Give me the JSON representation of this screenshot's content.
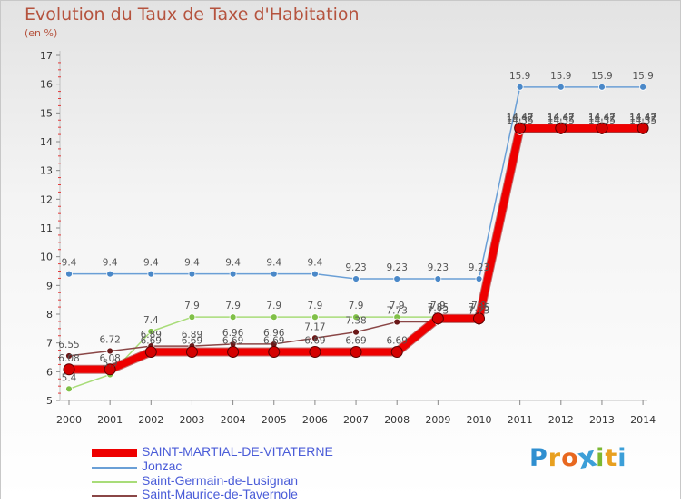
{
  "title": "Evolution du Taux de Taxe d'Habitation",
  "subtitle": "(en %)",
  "logo": {
    "letters": [
      "P",
      "r",
      "o",
      "x",
      "i",
      "t",
      "i"
    ],
    "colors": [
      "#2f8fd0",
      "#e8a020",
      "#e86820",
      "#3c9fd8",
      "#7cb832",
      "#e8a020",
      "#3c9fd8"
    ]
  },
  "colors": {
    "title": "#b5533e",
    "legend_text": "#4a5cd8",
    "axis": "#c0c0c0",
    "tick_red": "#e23b3b"
  },
  "chart_data": {
    "type": "line",
    "title": "Evolution du Taux de Taxe d'Habitation",
    "ylabel": "(en %)",
    "xlabel": "",
    "x": [
      "2000",
      "2001",
      "2002",
      "2003",
      "2004",
      "2005",
      "2006",
      "2007",
      "2008",
      "2009",
      "2010",
      "2011",
      "2012",
      "2013",
      "2014"
    ],
    "yticks": [
      "5",
      "6",
      "7",
      "8",
      "9",
      "10",
      "11",
      "12",
      "13",
      "14",
      "15",
      "16",
      "17"
    ],
    "ylim": [
      5,
      17
    ],
    "grid": false,
    "legend_position": "bottom-left",
    "series": [
      {
        "name": "SAINT-MARTIAL-DE-VITATERNE",
        "color": "#ee0000",
        "line_color": "#ee0000",
        "marker_color": "#d40000",
        "width": 8,
        "marker_radius": 6,
        "label_color": "#555555",
        "values": [
          6.08,
          6.08,
          6.69,
          6.69,
          6.69,
          6.69,
          6.69,
          6.69,
          6.69,
          7.85,
          7.85,
          14.47,
          14.47,
          14.47,
          14.47
        ],
        "labels": [
          "6.08",
          "6.08",
          "6.69",
          "6.69",
          "6.69",
          "6.69",
          "6.69",
          "6.69",
          "6.69",
          "7.85",
          "7.85",
          "14.47",
          "14.47",
          "14.47",
          "14.47"
        ]
      },
      {
        "name": "Jonzac",
        "color": "#6a9fd6",
        "line_color": "#6a9fd6",
        "marker_color": "#4a88c8",
        "width": 1.5,
        "marker_radius": 3.5,
        "label_color": "#555555",
        "values": [
          9.4,
          9.4,
          9.4,
          9.4,
          9.4,
          9.4,
          9.4,
          9.23,
          9.23,
          9.23,
          9.23,
          15.9,
          15.9,
          15.9,
          15.9
        ],
        "labels": [
          "9.4",
          "9.4",
          "9.4",
          "9.4",
          "9.4",
          "9.4",
          "9.4",
          "9.23",
          "9.23",
          "9.23",
          "9.23",
          "15.9",
          "15.9",
          "15.9",
          "15.9"
        ]
      },
      {
        "name": "Saint-Germain-de-Lusignan",
        "color": "#a8dc78",
        "line_color": "#a8dc78",
        "marker_color": "#80c048",
        "width": 1.5,
        "marker_radius": 3.5,
        "label_color": "#555555",
        "values": [
          5.4,
          5.9,
          7.4,
          7.9,
          7.9,
          7.9,
          7.9,
          7.9,
          7.9,
          7.9,
          7.9,
          14.42,
          14.42,
          14.42,
          14.42
        ],
        "labels": [
          "5.4",
          "5.9",
          "7.4",
          "7.9",
          "7.9",
          "7.9",
          "7.9",
          "7.9",
          "7.9",
          "7.9",
          "7.9",
          "14.42",
          "14.42",
          "14.42",
          "14.42"
        ]
      },
      {
        "name": "Saint-Maurice-de-Tavernole",
        "color": "#8a4646",
        "line_color": "#8a4646",
        "marker_color": "#6a1818",
        "width": 1.5,
        "marker_radius": 3.5,
        "label_color": "#555555",
        "values": [
          6.55,
          6.72,
          6.89,
          6.89,
          6.96,
          6.96,
          7.17,
          7.38,
          7.73,
          7.73,
          7.73,
          14.35,
          14.35,
          14.35,
          14.35
        ],
        "labels": [
          "6.55",
          "6.72",
          "6.89",
          "6.89",
          "6.96",
          "6.96",
          "7.17",
          "7.38",
          "7.73",
          "7.73",
          "7.73",
          "14.35",
          "14.35",
          "14.35",
          "14.35"
        ]
      }
    ]
  }
}
